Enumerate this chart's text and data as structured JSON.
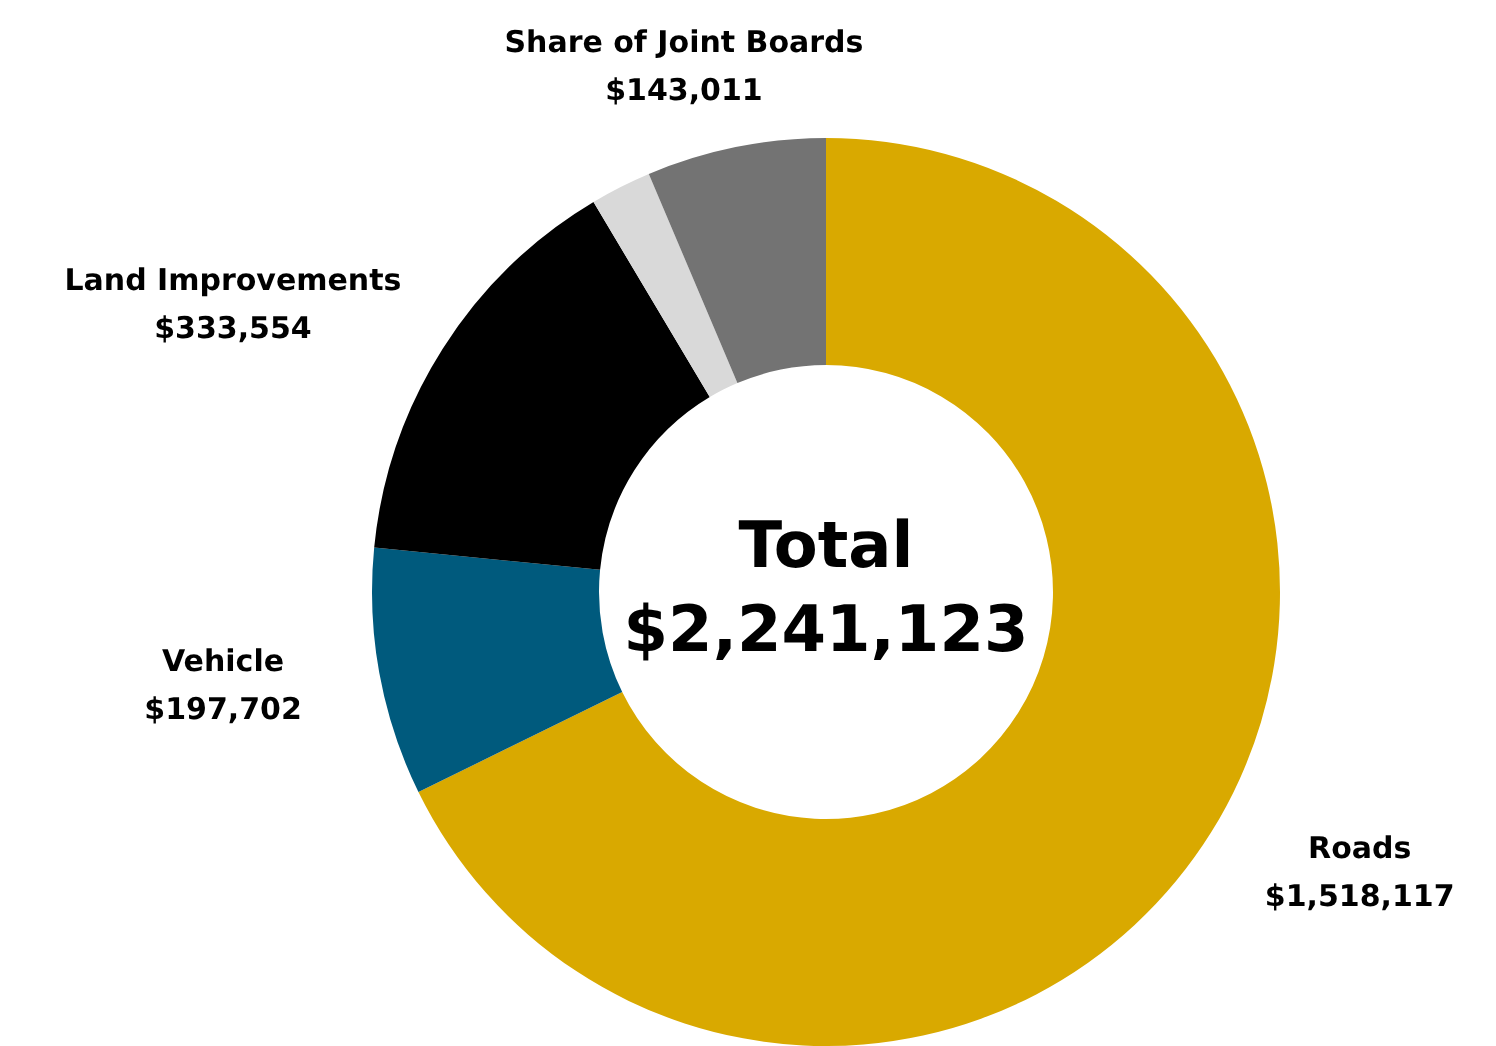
{
  "chart_data": {
    "type": "donut",
    "categories": [
      "Roads",
      "Vehicle",
      "Land Improvements",
      null,
      "Share of Joint Boards"
    ],
    "values": [
      1518117,
      197702,
      333554,
      48739,
      143011
    ],
    "colors": [
      "#d9a900",
      "#005a7d",
      "#000000",
      "#d9d9d9",
      "#737373"
    ],
    "value_labels": [
      "$1,518,117",
      "$197,702",
      "$333,554",
      null,
      "$143,011"
    ],
    "annotations": [
      "Total",
      "$2,241,123"
    ],
    "legend": false
  }
}
